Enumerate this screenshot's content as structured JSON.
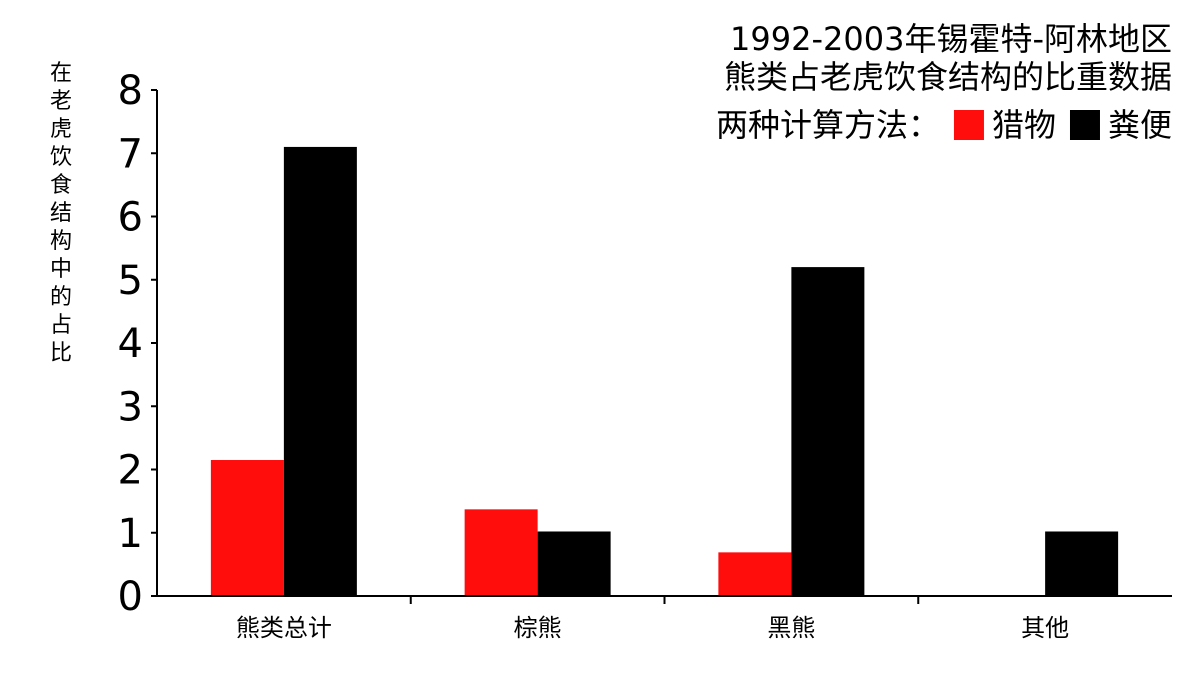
{
  "chart_data": {
    "type": "bar",
    "title_lines": [
      "1992-2003年锡霍特-阿林地区",
      "熊类占老虎饮食结构的比重数据"
    ],
    "legend_prefix": "两种计算方法：",
    "ylabel": "在老虎饮食结构中的占比",
    "xlabel": "",
    "categories": [
      "熊类总计",
      "棕熊",
      "黑熊",
      "其他"
    ],
    "series": [
      {
        "name": "猎物",
        "color": "#ff0d0d",
        "values": [
          2.15,
          1.37,
          0.69,
          0
        ]
      },
      {
        "name": "粪便",
        "color": "#000000",
        "values": [
          7.1,
          1.02,
          5.2,
          1.02
        ]
      }
    ],
    "ylim": [
      0,
      8
    ],
    "yticks": [
      "0",
      "1",
      "2",
      "3",
      "4",
      "5",
      "6",
      "7",
      "8"
    ],
    "grid": false,
    "legend_position": "top-right"
  }
}
